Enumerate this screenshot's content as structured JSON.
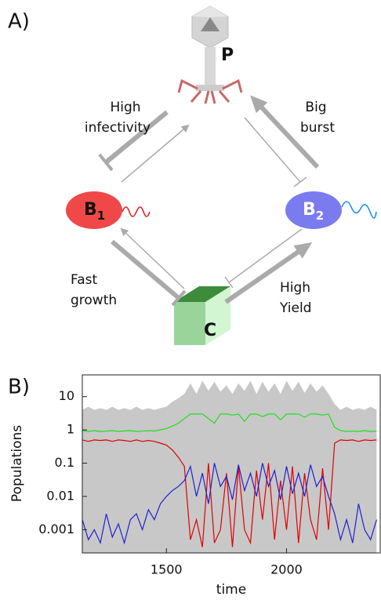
{
  "panel_a": {
    "label": "A)",
    "nodes": [
      {
        "label": "P"
      },
      {
        "label": "B",
        "sub": "1"
      },
      {
        "label": "B",
        "sub": "2"
      },
      {
        "label": "C"
      }
    ],
    "edge_labels": [
      [
        "High",
        "infectivity"
      ],
      [
        "Big",
        "burst"
      ],
      [
        "Fast",
        "growth"
      ],
      [
        "High",
        "Yield"
      ]
    ]
  },
  "panel_b": {
    "label": "B)"
  },
  "chart_data": {
    "type": "line",
    "x_label": "time",
    "y_label": "Populations",
    "yscale": "log",
    "xlim": [
      1150,
      2390
    ],
    "ylim": [
      0.0002,
      45
    ],
    "xticks": [
      1500,
      2000
    ],
    "yticks": [
      10,
      1,
      0.1,
      0.01,
      0.001
    ],
    "x": [
      1150,
      1175,
      1200,
      1225,
      1250,
      1275,
      1300,
      1325,
      1350,
      1375,
      1400,
      1425,
      1450,
      1475,
      1500,
      1525,
      1550,
      1575,
      1600,
      1625,
      1650,
      1675,
      1700,
      1725,
      1750,
      1775,
      1800,
      1825,
      1850,
      1875,
      1900,
      1925,
      1950,
      1975,
      2000,
      2025,
      2050,
      2075,
      2100,
      2125,
      2150,
      2175,
      2200,
      2225,
      2250,
      2275,
      2300,
      2325,
      2350,
      2375
    ],
    "series": [
      {
        "color": "#c8c8c8",
        "area": true,
        "values": [
          4,
          5,
          4,
          4.5,
          4,
          5,
          4,
          4.5,
          4,
          5,
          4,
          4.5,
          4,
          4.5,
          5,
          7,
          9,
          12,
          25,
          12,
          30,
          15,
          28,
          14,
          22,
          12,
          25,
          15,
          30,
          12,
          28,
          14,
          25,
          12,
          30,
          15,
          28,
          13,
          25,
          14,
          22,
          12,
          6,
          4,
          5,
          4,
          4.5,
          4,
          5,
          4
        ]
      },
      {
        "color": "#22dd22",
        "values": [
          0.95,
          0.9,
          0.95,
          0.9,
          0.92,
          0.95,
          0.9,
          0.93,
          0.95,
          0.9,
          0.92,
          0.95,
          0.93,
          1.0,
          1.1,
          1.3,
          1.6,
          2.2,
          3,
          3,
          3,
          2.2,
          1.6,
          3,
          3,
          2.8,
          3,
          1.8,
          3,
          3,
          2.5,
          3,
          3,
          2,
          3,
          3,
          3,
          2.4,
          3,
          3,
          2.8,
          3,
          1.2,
          0.95,
          0.9,
          0.92,
          0.9,
          0.95,
          0.9,
          0.92
        ]
      },
      {
        "color": "#e00000",
        "values": [
          0.5,
          0.45,
          0.5,
          0.48,
          0.5,
          0.45,
          0.5,
          0.48,
          0.45,
          0.5,
          0.45,
          0.48,
          0.45,
          0.4,
          0.35,
          0.25,
          0.15,
          0.08,
          0.0005,
          0.002,
          0.0003,
          0.1,
          0.0004,
          0.001,
          0.05,
          0.0003,
          0.08,
          0.001,
          0.0004,
          0.06,
          0.002,
          0.1,
          0.0005,
          0.03,
          0.001,
          0.08,
          0.0004,
          0.05,
          0.002,
          0.0005,
          0.07,
          0.001,
          0.4,
          0.5,
          0.48,
          0.5,
          0.45,
          0.5,
          0.48,
          0.5
        ]
      },
      {
        "color": "#2020d0",
        "values": [
          0.002,
          0.0005,
          0.001,
          0.0004,
          0.003,
          0.0006,
          0.0015,
          0.0004,
          0.002,
          0.003,
          0.001,
          0.004,
          0.002,
          0.006,
          0.01,
          0.015,
          0.02,
          0.03,
          0.08,
          0.01,
          0.05,
          0.006,
          0.1,
          0.02,
          0.04,
          0.008,
          0.09,
          0.015,
          0.05,
          0.01,
          0.1,
          0.02,
          0.06,
          0.008,
          0.08,
          0.012,
          0.05,
          0.01,
          0.09,
          0.02,
          0.04,
          0.01,
          0.003,
          0.0005,
          0.002,
          0.0004,
          0.006,
          0.001,
          0.0005,
          0.002
        ]
      }
    ]
  }
}
